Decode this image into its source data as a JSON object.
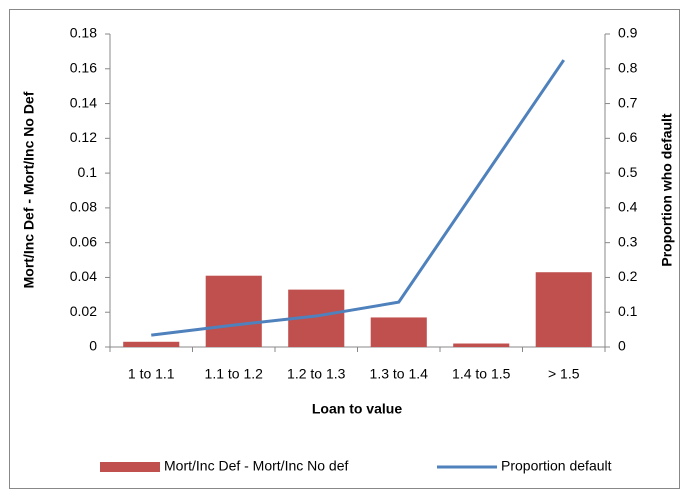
{
  "chart_data": {
    "type": "bar-line",
    "x_label": "Loan to value",
    "y_label": "Mort/Inc Def - Mort/Inc No Def",
    "y2_label": "Proportion who default",
    "categories": [
      "1 to 1.1",
      "1.1 to 1.2",
      "1.2 to 1.3",
      "1.3 to 1.4",
      "1.4 to 1.5",
      "> 1.5"
    ],
    "series": [
      {
        "name": "Mort/Inc Def - Mort/Inc No def",
        "type": "bar",
        "color": "#c0504d",
        "values": [
          0.003,
          0.041,
          0.033,
          0.017,
          0.002,
          0.043
        ]
      },
      {
        "name": "Proportion default",
        "type": "line",
        "axis": "y2",
        "color": "#4f81bd",
        "values": [
          0.034,
          0.063,
          0.089,
          0.129,
          0.477,
          0.825
        ]
      }
    ],
    "ylim": [
      0,
      0.18
    ],
    "yticks": [
      0,
      0.02,
      0.04,
      0.06,
      0.08,
      0.1,
      0.12,
      0.14,
      0.16,
      0.18
    ],
    "y2lim": [
      0,
      0.9
    ],
    "y2ticks": [
      0,
      0.1,
      0.2,
      0.3,
      0.4,
      0.5,
      0.6,
      0.7,
      0.8,
      0.9
    ],
    "grid": false,
    "legend": "bottom"
  }
}
